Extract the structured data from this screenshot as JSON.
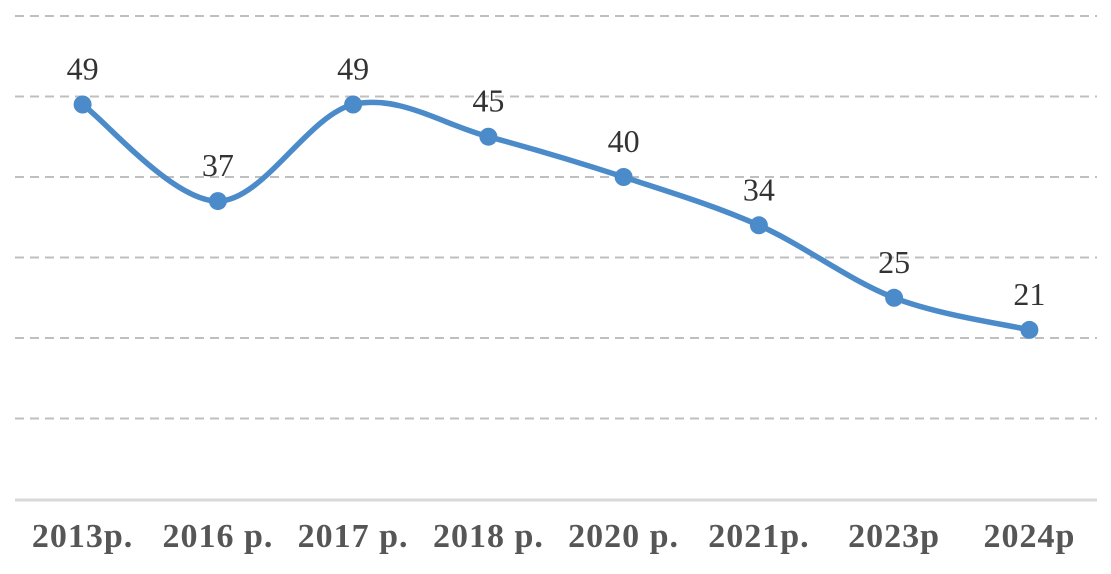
{
  "chart_data": {
    "type": "line",
    "categories": [
      "2013p.",
      "2016 p.",
      "2017 p.",
      "2018 p.",
      "2020 p.",
      "2021p.",
      "2023p",
      "2024p"
    ],
    "values": [
      49,
      37,
      49,
      45,
      40,
      34,
      25,
      21
    ],
    "title": "",
    "xlabel": "",
    "ylabel": "",
    "ylim": [
      0,
      60
    ],
    "gridline_step": 10,
    "grid": "horizontal-dashed",
    "y_tick_labels_visible": false,
    "legend_position": "none",
    "smooth_line": true,
    "data_labels_position": "above-points",
    "colors": {
      "line": "#4C8BC9",
      "marker": "#4C8BC9",
      "gridline": "#BFBFBF",
      "axis_line": "#D9D9D9",
      "data_label": "#333333",
      "axis_label": "#565656",
      "background": "#FFFFFF"
    }
  }
}
